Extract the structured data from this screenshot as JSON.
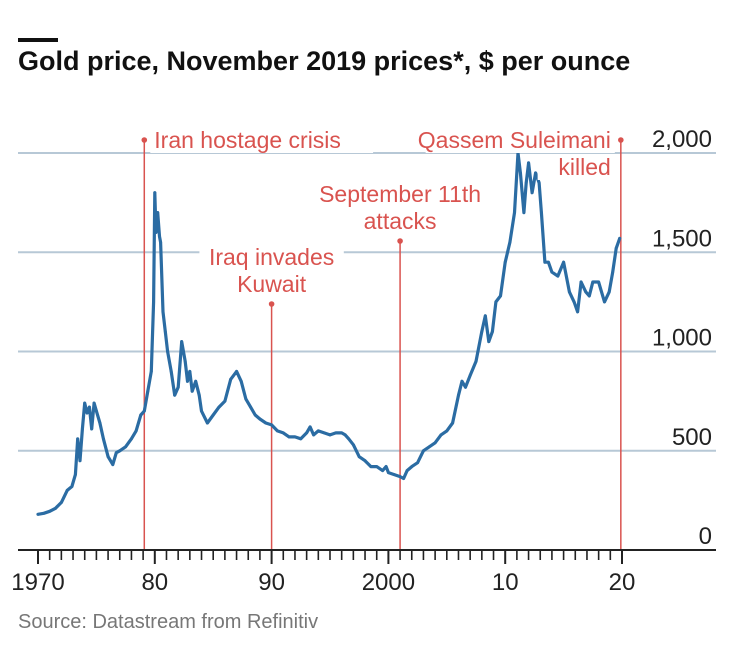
{
  "chart_data": {
    "type": "line",
    "title": "Gold price, November 2019 prices*, $ per ounce",
    "source": "Source: Datastream from Refinitiv",
    "xlabel": "",
    "ylabel": "",
    "xlim": [
      1970,
      2020
    ],
    "ylim": [
      0,
      2000
    ],
    "yticks": [
      0,
      500,
      1000,
      1500,
      2000
    ],
    "ytick_labels": [
      "0",
      "500",
      "1,000",
      "1,500",
      "2,000"
    ],
    "xticks": [
      1970,
      1980,
      1990,
      2000,
      2010,
      2020
    ],
    "xtick_labels": [
      "1970",
      "80",
      "90",
      "2000",
      "10",
      "20"
    ],
    "grid": "horizontal",
    "colors": {
      "line": "#2b6ca3",
      "annotation": "#d9534f",
      "grid": "#b7c8d6",
      "axis": "#222222"
    },
    "series": [
      {
        "x": [
          1970.0,
          1970.5,
          1971.0,
          1971.5,
          1972.0,
          1972.5,
          1972.9,
          1973.2,
          1973.4,
          1973.6,
          1973.8,
          1974.0,
          1974.2,
          1974.4,
          1974.6,
          1974.8,
          1975.0,
          1975.3,
          1975.6,
          1976.0,
          1976.4,
          1976.7,
          1977.0,
          1977.5,
          1978.0,
          1978.4,
          1978.8,
          1979.1,
          1979.4,
          1979.7,
          1979.9,
          1980.0,
          1980.1,
          1980.25,
          1980.4,
          1980.5,
          1980.7,
          1980.9,
          1981.1,
          1981.4,
          1981.7,
          1982.0,
          1982.3,
          1982.6,
          1982.8,
          1983.0,
          1983.2,
          1983.5,
          1983.8,
          1984.0,
          1984.5,
          1985.0,
          1985.5,
          1986.0,
          1986.5,
          1987.0,
          1987.4,
          1987.8,
          1988.2,
          1988.6,
          1989.0,
          1989.5,
          1990.0,
          1990.5,
          1991.0,
          1991.5,
          1992.0,
          1992.5,
          1993.0,
          1993.3,
          1993.6,
          1994.0,
          1994.5,
          1995.0,
          1995.5,
          1996.0,
          1996.3,
          1996.6,
          1997.0,
          1997.5,
          1998.0,
          1998.5,
          1999.0,
          1999.5,
          1999.8,
          2000.0,
          2000.5,
          2001.0,
          2001.3,
          2001.6,
          2002.0,
          2002.5,
          2003.0,
          2003.5,
          2004.0,
          2004.5,
          2005.0,
          2005.5,
          2006.0,
          2006.3,
          2006.6,
          2007.0,
          2007.5,
          2008.0,
          2008.3,
          2008.6,
          2008.9,
          2009.2,
          2009.6,
          2010.0,
          2010.4,
          2010.8,
          2011.1,
          2011.3,
          2011.6,
          2011.8,
          2012.0,
          2012.3,
          2012.6,
          2012.9,
          2013.1,
          2013.4,
          2013.7,
          2014.0,
          2014.5,
          2015.0,
          2015.5,
          2015.9,
          2016.2,
          2016.5,
          2016.9,
          2017.2,
          2017.5,
          2018.0,
          2018.5,
          2018.9,
          2019.2,
          2019.5,
          2019.8
        ],
        "values": [
          180,
          185,
          195,
          210,
          240,
          300,
          320,
          380,
          560,
          450,
          610,
          740,
          690,
          720,
          610,
          740,
          700,
          640,
          560,
          470,
          430,
          490,
          500,
          520,
          560,
          600,
          680,
          700,
          800,
          900,
          1250,
          1800,
          1600,
          1700,
          1580,
          1550,
          1200,
          1100,
          1000,
          900,
          780,
          820,
          1050,
          950,
          850,
          900,
          800,
          850,
          780,
          700,
          640,
          680,
          720,
          750,
          860,
          900,
          850,
          760,
          720,
          680,
          660,
          640,
          630,
          600,
          590,
          570,
          570,
          560,
          590,
          620,
          580,
          600,
          590,
          580,
          590,
          590,
          580,
          560,
          530,
          470,
          450,
          420,
          420,
          400,
          420,
          390,
          380,
          370,
          360,
          400,
          420,
          440,
          500,
          520,
          540,
          580,
          600,
          640,
          780,
          850,
          820,
          880,
          950,
          1100,
          1180,
          1050,
          1100,
          1250,
          1280,
          1450,
          1550,
          1700,
          2000,
          1900,
          1700,
          1850,
          1950,
          1800,
          1900,
          1850,
          1700,
          1450,
          1450,
          1400,
          1380,
          1450,
          1300,
          1250,
          1200,
          1350,
          1300,
          1280,
          1350,
          1350,
          1250,
          1300,
          1400,
          1520,
          1570
        ]
      }
    ],
    "annotations": [
      {
        "x": 1979.1,
        "lines": [
          "Iran hostage crisis"
        ]
      },
      {
        "x": 1990.0,
        "lines": [
          "Iraq invades",
          "Kuwait"
        ]
      },
      {
        "x": 2001.0,
        "lines": [
          "September 11th",
          "attacks"
        ]
      },
      {
        "x": 2019.9,
        "lines": [
          "Qassem Suleimani",
          "killed"
        ]
      }
    ]
  }
}
